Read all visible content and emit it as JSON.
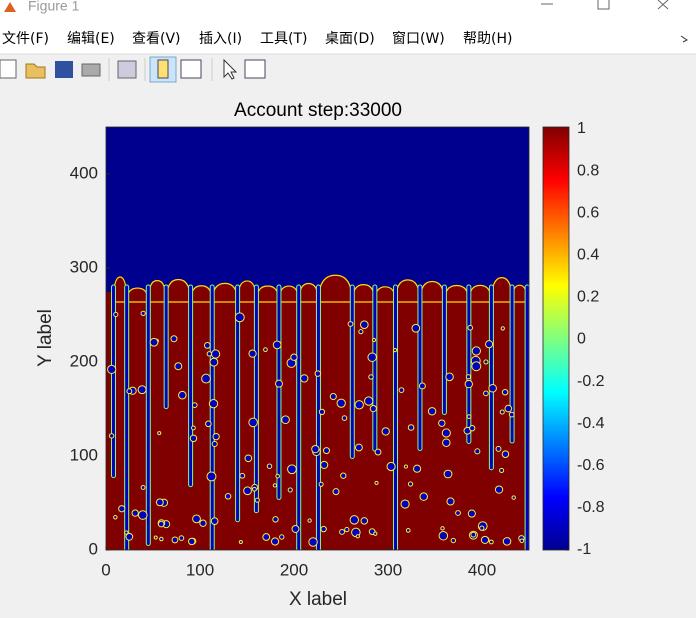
{
  "window": {
    "title": "Figure 1",
    "menu": [
      "文件(F)",
      "编辑(E)",
      "查看(V)",
      "插入(I)",
      "工具(T)",
      "桌面(D)",
      "窗口(W)",
      "帮助(H)"
    ]
  },
  "chart_data": {
    "type": "image",
    "title": "Account step:33000",
    "xlabel": "X label",
    "ylabel": "Y label",
    "xlim": [
      0,
      450
    ],
    "ylim": [
      0,
      450
    ],
    "xticks": [
      0,
      100,
      200,
      300,
      400
    ],
    "yticks": [
      0,
      100,
      200,
      300,
      400
    ],
    "colorbar": {
      "clim": [
        -1,
        1
      ],
      "ticks": [
        -1,
        -0.8,
        -0.6,
        -0.4,
        -0.2,
        0,
        0.2,
        0.4,
        0.6,
        0.8,
        1
      ]
    }
  }
}
